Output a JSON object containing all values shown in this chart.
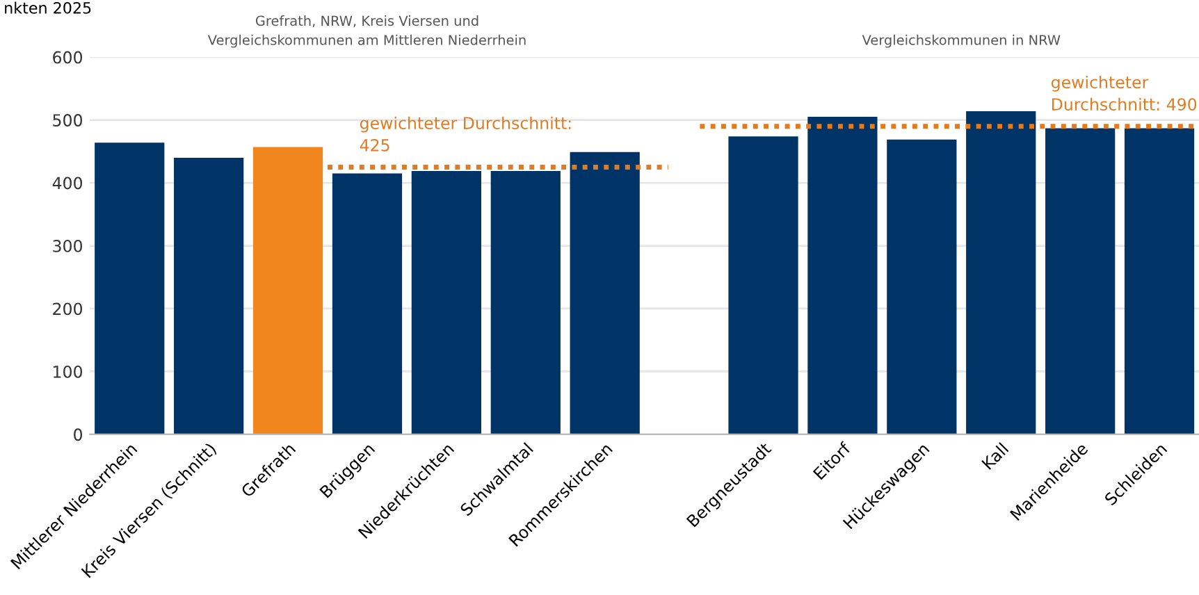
{
  "chart_data": {
    "type": "bar",
    "title": "nkten 2025",
    "categories": [
      "Mittlerer Niederrhein",
      "Kreis Viersen (Schnitt)",
      "Grefrath",
      "Brüggen",
      "Niederkrüchten",
      "Schwalmtal",
      "Rommerskirchen",
      null,
      "Bergneustadt",
      "Eitorf",
      "Hückeswagen",
      "Kall",
      "Marienheide",
      "Schleiden"
    ],
    "values": [
      464,
      440,
      457,
      415,
      419,
      419,
      449,
      null,
      474,
      505,
      469,
      514,
      487,
      487
    ],
    "colors": [
      "#003366",
      "#003366",
      "#f0861d",
      "#003366",
      "#003366",
      "#003366",
      "#003366",
      null,
      "#003366",
      "#003366",
      "#003366",
      "#003366",
      "#003366",
      "#003366"
    ],
    "ylim": [
      0,
      600
    ],
    "yticks": [
      0,
      100,
      200,
      300,
      400,
      500,
      600
    ],
    "grid": "y",
    "annotations": [
      "Grefrath, NRW, Kreis Viersen und\nVergleichskommunen am Mittleren Niederrhein",
      "Vergleichskommunen in NRW"
    ],
    "ref_lines": [
      {
        "axis": "y",
        "value": 425,
        "label": "gewichteter Durchschnitt:\n425",
        "color": "#e07b20",
        "line_style": "dotted"
      },
      {
        "axis": "y",
        "value": 490,
        "label": "gewichteter\nDurchschnitt: 490",
        "color": "#e07b20",
        "line_style": "dotted"
      }
    ]
  }
}
